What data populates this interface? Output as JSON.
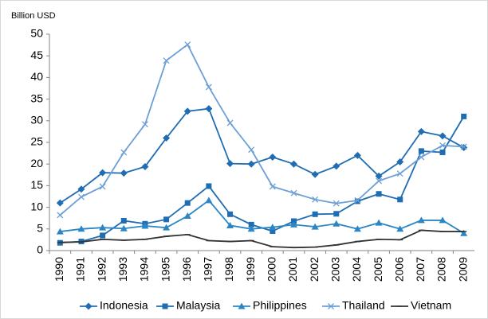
{
  "chart_data": {
    "type": "line",
    "y_label": "Billion USD",
    "categories": [
      "1990",
      "1991",
      "1992",
      "1993",
      "1994",
      "1995",
      "1996",
      "1997",
      "1998",
      "1999",
      "2000",
      "2001",
      "2002",
      "2003",
      "2004",
      "2005",
      "2006",
      "2007",
      "2008",
      "2009"
    ],
    "series": [
      {
        "name": "Indonesia",
        "color": "#1f6db2",
        "marker": "diamond",
        "values": [
          11,
          14.2,
          18,
          17.9,
          19.4,
          26,
          32.2,
          32.8,
          20.1,
          20,
          21.6,
          20,
          17.6,
          19.5,
          22,
          17.2,
          20.5,
          27.5,
          26.5,
          23.8
        ]
      },
      {
        "name": "Malaysia",
        "color": "#1f6db2",
        "marker": "square",
        "values": [
          1.8,
          2.1,
          3.5,
          6.9,
          6.2,
          7.2,
          11,
          14.9,
          8.4,
          6,
          4.5,
          6.8,
          8.4,
          8.5,
          11.4,
          13.1,
          11.8,
          23,
          22.7,
          31
        ]
      },
      {
        "name": "Philippines",
        "color": "#2a86c4",
        "marker": "triangle",
        "values": [
          4.4,
          5,
          5.3,
          5.1,
          5.7,
          5.3,
          8,
          11.6,
          5.8,
          5,
          5.4,
          6,
          5.5,
          6.2,
          5,
          6.4,
          5,
          7,
          7,
          4
        ]
      },
      {
        "name": "Thailand",
        "color": "#6c9fd6",
        "marker": "x",
        "values": [
          8.2,
          12.4,
          14.8,
          22.7,
          29.2,
          43.9,
          47.6,
          37.8,
          29.5,
          23.3,
          14.8,
          13.3,
          11.8,
          10.9,
          11.6,
          16.1,
          17.8,
          21.6,
          24.3,
          24
        ]
      },
      {
        "name": "Vietnam",
        "color": "#333333",
        "marker": "dash",
        "values": [
          1.9,
          2,
          2.6,
          2.4,
          2.6,
          3.3,
          3.7,
          2.3,
          2.1,
          2.3,
          0.9,
          0.7,
          0.8,
          1.3,
          2.1,
          2.6,
          2.5,
          4.7,
          4.4,
          4.4
        ]
      }
    ],
    "ylim": [
      0,
      50
    ],
    "yticks": [
      0,
      5,
      10,
      15,
      20,
      25,
      30,
      35,
      40,
      45,
      50
    ],
    "grid": false,
    "legend": "bottom"
  }
}
